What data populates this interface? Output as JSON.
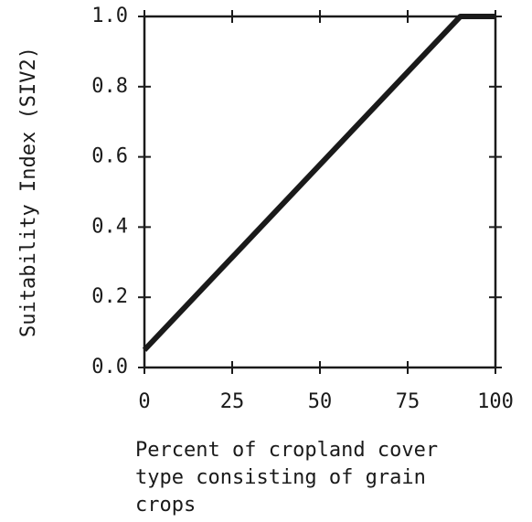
{
  "chart_data": {
    "type": "line",
    "ylabel": "Suitability Index (SIV2)",
    "xlabel": [
      "Percent of cropland cover",
      "type consisting of grain",
      "crops"
    ],
    "x": [
      0,
      90,
      100
    ],
    "series": [
      {
        "color": "#1a1a1a",
        "values": [
          0.05,
          1.0,
          1.0
        ]
      }
    ],
    "xlim": [
      0,
      100
    ],
    "xticks": [
      0,
      25,
      50,
      75,
      100
    ],
    "ylim": [
      0,
      1.0
    ],
    "yticks": [
      {
        "value": 0,
        "label": "0.0"
      },
      0.2,
      0.4,
      0.6,
      0.8,
      {
        "value": 1.0,
        "label": "1.0"
      }
    ]
  }
}
